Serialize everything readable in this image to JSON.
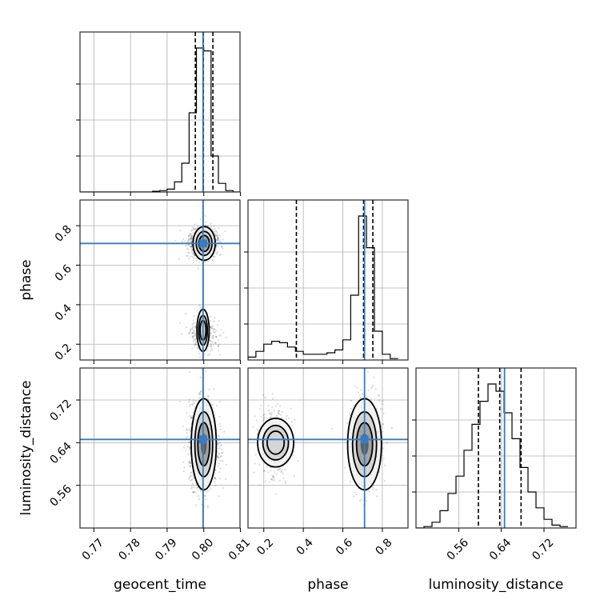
{
  "chart_data": {
    "type": "corner",
    "parameters": [
      "geocent_time",
      "phase",
      "luminosity_distance"
    ],
    "truths": {
      "geocent_time": 0.7998,
      "phase": 0.71,
      "luminosity_distance": 0.646
    },
    "truth_color": "#3a7bbf",
    "ranges": {
      "geocent_time": [
        0.7662,
        0.8099
      ],
      "phase": [
        0.12,
        0.93
      ],
      "luminosity_distance": [
        0.48,
        0.78
      ]
    },
    "quantiles": {
      "geocent_time": [
        0.7977,
        0.7999,
        0.8025
      ],
      "phase": [
        0.365,
        0.705,
        0.752
      ],
      "luminosity_distance": [
        0.597,
        0.637,
        0.677
      ]
    },
    "ticks": {
      "geocent_time": [
        "0.77",
        "0.78",
        "0.79",
        "0.80",
        "0.81"
      ],
      "phase_x": [
        "0.2",
        "0.4",
        "0.6",
        "0.8"
      ],
      "phase_y": [
        "0.2",
        "0.4",
        "0.6",
        "0.8"
      ],
      "luminosity_distance_x": [
        "0.56",
        "0.64",
        "0.72"
      ],
      "luminosity_distance_y": [
        "0.56",
        "0.64",
        "0.72"
      ]
    },
    "histograms": {
      "geocent_time": {
        "edges": [
          0.766,
          0.768,
          0.77,
          0.772,
          0.774,
          0.776,
          0.778,
          0.78,
          0.782,
          0.784,
          0.786,
          0.788,
          0.79,
          0.792,
          0.794,
          0.796,
          0.798,
          0.8,
          0.802,
          0.804,
          0.806,
          0.808,
          0.81
        ],
        "counts": [
          0,
          0,
          0,
          0,
          0,
          0,
          0,
          0,
          0,
          0,
          0.005,
          0.01,
          0.02,
          0.07,
          0.2,
          0.55,
          1.0,
          0.98,
          0.25,
          0.06,
          0.01,
          0
        ]
      },
      "phase": {
        "edges": [
          0.12,
          0.16,
          0.2,
          0.24,
          0.28,
          0.32,
          0.36,
          0.4,
          0.44,
          0.48,
          0.52,
          0.56,
          0.6,
          0.64,
          0.68,
          0.72,
          0.76,
          0.8,
          0.84,
          0.88
        ],
        "counts": [
          0.02,
          0.06,
          0.11,
          0.13,
          0.12,
          0.09,
          0.06,
          0.04,
          0.04,
          0.04,
          0.05,
          0.07,
          0.14,
          0.45,
          1.0,
          0.78,
          0.2,
          0.04,
          0.01
        ]
      },
      "luminosity_distance": {
        "edges": [
          0.48,
          0.495,
          0.51,
          0.525,
          0.54,
          0.555,
          0.57,
          0.585,
          0.6,
          0.615,
          0.63,
          0.645,
          0.66,
          0.675,
          0.69,
          0.705,
          0.72,
          0.735,
          0.75,
          0.765
        ],
        "counts": [
          0.0,
          0.01,
          0.04,
          0.12,
          0.24,
          0.36,
          0.54,
          0.72,
          0.88,
          1.0,
          0.95,
          0.8,
          0.62,
          0.42,
          0.25,
          0.14,
          0.06,
          0.02,
          0.01
        ]
      }
    }
  }
}
